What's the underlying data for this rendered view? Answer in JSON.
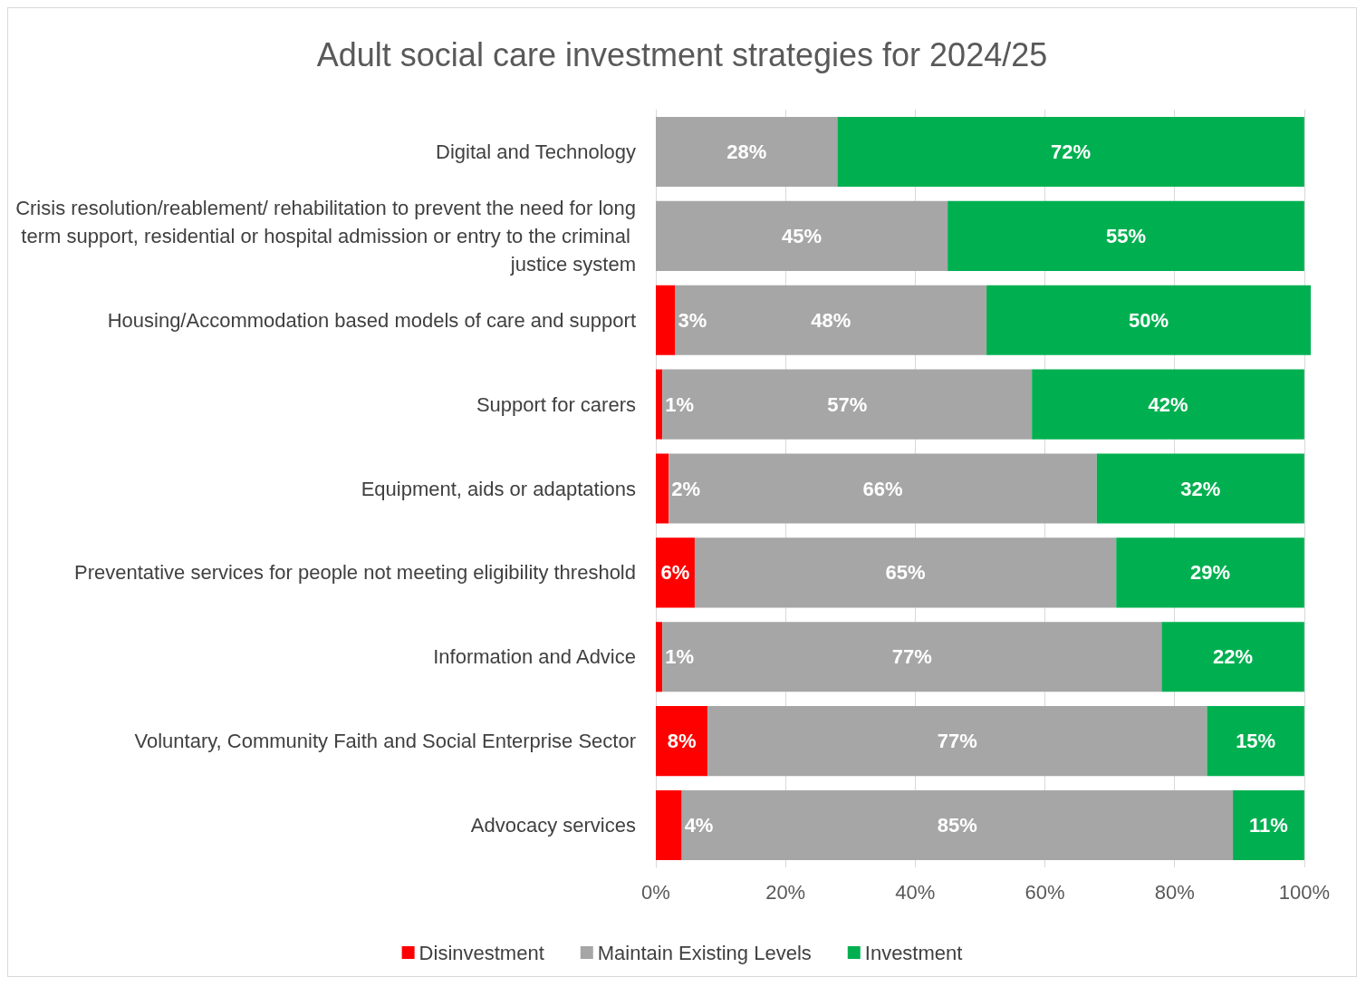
{
  "chart_data": {
    "type": "bar",
    "orientation": "horizontal",
    "stacked": true,
    "title": "Adult social care investment strategies for 2024/25",
    "categories": [
      "Digital and Technology",
      "Crisis resolution/reablement/ rehabilitation to prevent the need for long term support, residential or hospital admission or entry to the criminal justice system",
      "Housing/Accommodation based models of care and support",
      "Support for carers",
      "Equipment, aids or adaptations",
      "Preventative services for people not meeting eligibility threshold",
      "Information and Advice",
      "Voluntary, Community Faith and Social Enterprise Sector",
      "Advocacy services"
    ],
    "series": [
      {
        "name": "Disinvestment",
        "color": "#ff0000",
        "values": [
          null,
          null,
          3,
          1,
          2,
          6,
          1,
          8,
          4
        ],
        "value_labels": [
          null,
          null,
          "3%",
          "1%",
          "2%",
          "6%",
          "1%",
          "8%",
          "4%"
        ]
      },
      {
        "name": "Maintain Existing Levels",
        "color": "#a6a6a6",
        "values": [
          28,
          45,
          48,
          57,
          66,
          65,
          77,
          77,
          85
        ],
        "value_labels": [
          "28%",
          "45%",
          "48%",
          "57%",
          "66%",
          "65%",
          "77%",
          "77%",
          "85%"
        ]
      },
      {
        "name": "Investment",
        "color": "#00b050",
        "values": [
          72,
          55,
          50,
          42,
          32,
          29,
          22,
          15,
          11
        ],
        "value_labels": [
          "72%",
          "55%",
          "50%",
          "42%",
          "32%",
          "29%",
          "22%",
          "15%",
          "11%"
        ]
      }
    ],
    "xlim": [
      0,
      101
    ],
    "xticks": [
      {
        "value": 0,
        "label": "0%"
      },
      {
        "value": 20,
        "label": "20%"
      },
      {
        "value": 40,
        "label": "40%"
      },
      {
        "value": 60,
        "label": "60%"
      },
      {
        "value": 80,
        "label": "80%"
      },
      {
        "value": 100,
        "label": "100%"
      }
    ],
    "grid": "x",
    "legend": "bottom"
  }
}
